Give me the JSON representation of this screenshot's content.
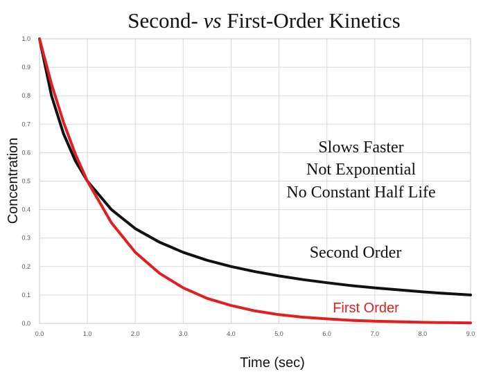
{
  "chart_data": {
    "type": "line",
    "title_prefix": "Second- ",
    "title_italic": "vs",
    "title_suffix": " First-Order Kinetics",
    "xlabel": "Time (sec)",
    "ylabel": "Concentration",
    "xlim": [
      0,
      9
    ],
    "ylim": [
      0,
      1
    ],
    "x_ticks": [
      "0.0",
      "1.0",
      "2.0",
      "3.0",
      "4.0",
      "5.0",
      "6.0",
      "7.0",
      "8.0",
      "9.0"
    ],
    "y_ticks": [
      "0.0",
      "0.1",
      "0.2",
      "0.3",
      "0.4",
      "0.5",
      "0.6",
      "0.7",
      "0.8",
      "0.9",
      "1.0"
    ],
    "grid": true,
    "series": [
      {
        "name": "Second Order",
        "color": "#111111",
        "x": [
          0,
          0.25,
          0.5,
          0.75,
          1,
          1.5,
          2,
          2.5,
          3,
          3.5,
          4,
          4.5,
          5,
          5.5,
          6,
          6.5,
          7,
          7.5,
          8,
          8.5,
          9
        ],
        "y": [
          1.0,
          0.8,
          0.667,
          0.571,
          0.5,
          0.4,
          0.333,
          0.286,
          0.25,
          0.222,
          0.2,
          0.182,
          0.167,
          0.154,
          0.143,
          0.133,
          0.125,
          0.118,
          0.111,
          0.105,
          0.1
        ]
      },
      {
        "name": "First Order",
        "color": "#e02020",
        "x": [
          0,
          0.25,
          0.5,
          0.75,
          1,
          1.5,
          2,
          2.5,
          3,
          3.5,
          4,
          4.5,
          5,
          5.5,
          6,
          6.5,
          7,
          7.5,
          8,
          8.5,
          9
        ],
        "y": [
          1.0,
          0.841,
          0.707,
          0.595,
          0.5,
          0.354,
          0.25,
          0.177,
          0.125,
          0.088,
          0.063,
          0.044,
          0.031,
          0.022,
          0.016,
          0.011,
          0.008,
          0.006,
          0.004,
          0.003,
          0.002
        ]
      }
    ],
    "annotations": {
      "line1": "Slows Faster",
      "line2": "Not Exponential",
      "line3": "No Constant Half Life",
      "second_order_label": "Second Order",
      "first_order_label": "First Order"
    }
  }
}
